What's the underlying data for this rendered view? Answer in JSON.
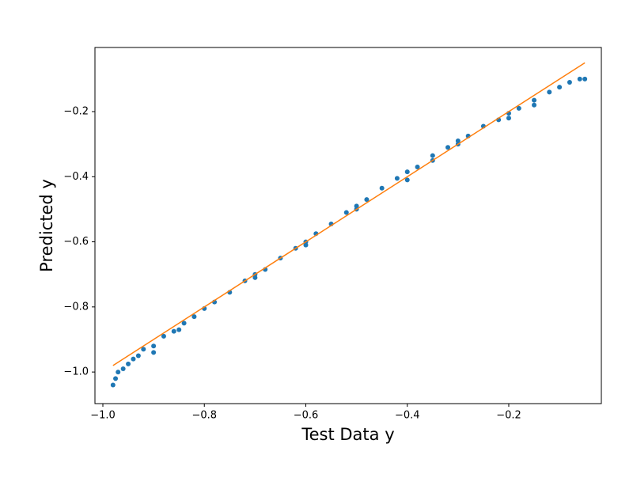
{
  "chart_data": {
    "type": "scatter",
    "xlabel": "Test Data y",
    "ylabel": "Predicted y",
    "xlim": [
      -1.0156,
      -0.0175
    ],
    "ylim": [
      -1.097,
      -0.003
    ],
    "xticks": [
      {
        "value": -1.0,
        "label": "−1.0"
      },
      {
        "value": -0.8,
        "label": "−0.8"
      },
      {
        "value": -0.6,
        "label": "−0.6"
      },
      {
        "value": -0.4,
        "label": "−0.4"
      },
      {
        "value": -0.2,
        "label": "−0.2"
      }
    ],
    "yticks": [
      {
        "value": -1.0,
        "label": "−1.0"
      },
      {
        "value": -0.8,
        "label": "−0.8"
      },
      {
        "value": -0.6,
        "label": "−0.6"
      },
      {
        "value": -0.4,
        "label": "−0.4"
      },
      {
        "value": -0.2,
        "label": "−0.2"
      }
    ],
    "grid": false,
    "series": [
      {
        "type": "scatter",
        "color": "#1f77b4",
        "x": [
          -0.98,
          -0.975,
          -0.97,
          -0.96,
          -0.95,
          -0.94,
          -0.93,
          -0.92,
          -0.9,
          -0.9,
          -0.88,
          -0.86,
          -0.85,
          -0.84,
          -0.82,
          -0.8,
          -0.78,
          -0.75,
          -0.72,
          -0.7,
          -0.7,
          -0.68,
          -0.65,
          -0.62,
          -0.6,
          -0.6,
          -0.58,
          -0.55,
          -0.52,
          -0.5,
          -0.5,
          -0.48,
          -0.45,
          -0.42,
          -0.4,
          -0.4,
          -0.38,
          -0.35,
          -0.35,
          -0.32,
          -0.3,
          -0.3,
          -0.28,
          -0.25,
          -0.22,
          -0.2,
          -0.2,
          -0.18,
          -0.15,
          -0.15,
          -0.12,
          -0.1,
          -0.08,
          -0.06,
          -0.05
        ],
        "values": [
          -1.04,
          -1.02,
          -1.0,
          -0.99,
          -0.975,
          -0.96,
          -0.95,
          -0.93,
          -0.92,
          -0.94,
          -0.89,
          -0.875,
          -0.87,
          -0.85,
          -0.83,
          -0.805,
          -0.785,
          -0.755,
          -0.72,
          -0.7,
          -0.71,
          -0.685,
          -0.65,
          -0.62,
          -0.6,
          -0.61,
          -0.575,
          -0.545,
          -0.51,
          -0.49,
          -0.5,
          -0.47,
          -0.435,
          -0.405,
          -0.385,
          -0.41,
          -0.37,
          -0.335,
          -0.35,
          -0.31,
          -0.29,
          -0.3,
          -0.275,
          -0.245,
          -0.225,
          -0.205,
          -0.22,
          -0.19,
          -0.165,
          -0.18,
          -0.14,
          -0.125,
          -0.11,
          -0.1,
          -0.1
        ]
      },
      {
        "type": "line",
        "color": "#ff7f0e",
        "x": [
          -0.98,
          -0.05
        ],
        "values": [
          -0.98,
          -0.05
        ]
      }
    ]
  }
}
